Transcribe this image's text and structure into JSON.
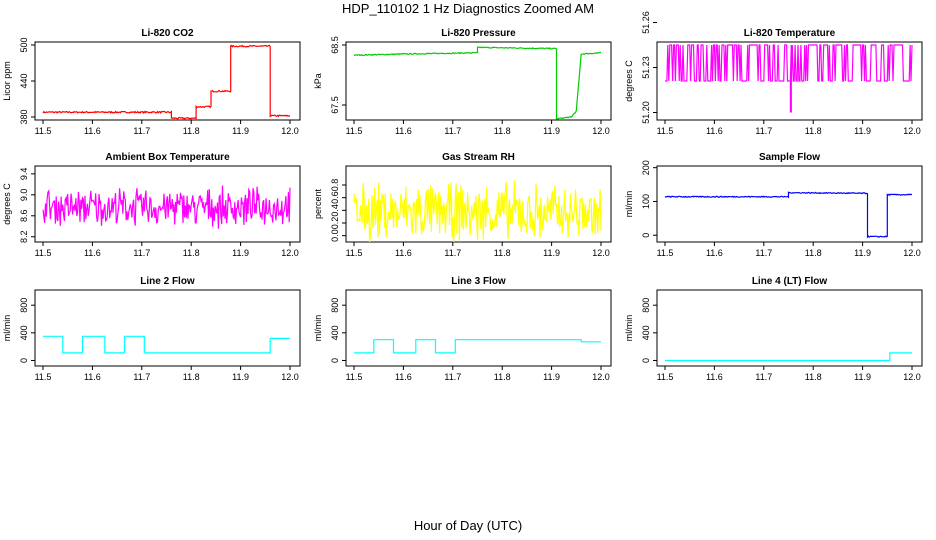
{
  "title": "HDP_110102  1 Hz Diagnostics Zoomed AM",
  "xlabel": "Hour of Day (UTC)",
  "chart_data": [
    {
      "type": "line",
      "title": "Li-820 CO2",
      "ylabel": "Licor ppm",
      "color": "#ff0000",
      "xlim": [
        11.5,
        12.0
      ],
      "ylim": [
        375,
        505
      ],
      "xticks": [
        "11.5",
        "11.6",
        "11.7",
        "11.8",
        "11.9",
        "12.0"
      ],
      "yticks": [
        "380",
        "440",
        "500"
      ],
      "series": [
        {
          "kind": "steps",
          "noise": 1.2,
          "points": [
            [
              11.5,
              388
            ],
            [
              11.76,
              388
            ],
            [
              11.76,
              378
            ],
            [
              11.81,
              378
            ],
            [
              11.81,
              397
            ],
            [
              11.84,
              397
            ],
            [
              11.84,
              423
            ],
            [
              11.88,
              423
            ],
            [
              11.88,
              498
            ],
            [
              11.96,
              498
            ],
            [
              11.96,
              382
            ],
            [
              12.0,
              382
            ]
          ]
        }
      ]
    },
    {
      "type": "line",
      "title": "Li-820 Pressure",
      "ylabel": "kPa",
      "color": "#00cc00",
      "xlim": [
        11.5,
        12.0
      ],
      "ylim": [
        67.25,
        68.55
      ],
      "xticks": [
        "11.5",
        "11.6",
        "11.7",
        "11.8",
        "11.9",
        "12.0"
      ],
      "yticks": [
        "67.5",
        "68.5"
      ],
      "series": [
        {
          "kind": "steps",
          "noise": 0.008,
          "points": [
            [
              11.5,
              68.33
            ],
            [
              11.6,
              68.35
            ],
            [
              11.75,
              68.37
            ],
            [
              11.75,
              68.46
            ],
            [
              11.91,
              68.44
            ],
            [
              11.91,
              67.27
            ],
            [
              11.94,
              67.3
            ],
            [
              11.95,
              67.4
            ],
            [
              11.96,
              68.35
            ],
            [
              12.0,
              68.37
            ]
          ]
        }
      ]
    },
    {
      "type": "line",
      "title": "Li-820 Temperature",
      "ylabel": "degrees C",
      "color": "#ff00ff",
      "xlim": [
        11.5,
        12.0
      ],
      "ylim": [
        51.195,
        51.247
      ],
      "xticks": [
        "11.5",
        "11.6",
        "11.7",
        "11.8",
        "11.9",
        "12.0"
      ],
      "yticks": [
        "51.20",
        "51.23",
        "51.26"
      ],
      "series": [
        {
          "kind": "toggle",
          "low": 51.221,
          "high": 51.245,
          "dip": [
            11.755,
            51.2
          ]
        }
      ]
    },
    {
      "type": "line",
      "title": "Ambient Box Temperature",
      "ylabel": "degrees C",
      "color": "#ff00ff",
      "xlim": [
        11.5,
        12.0
      ],
      "ylim": [
        8.1,
        9.55
      ],
      "xticks": [
        "11.5",
        "11.6",
        "11.7",
        "11.8",
        "11.9",
        "12.0"
      ],
      "yticks": [
        "8.2",
        "8.6",
        "9.0",
        "9.4"
      ],
      "series": [
        {
          "kind": "noise",
          "base": 8.76,
          "amp": 0.42
        }
      ]
    },
    {
      "type": "line",
      "title": "Gas Stream RH",
      "ylabel": "percent",
      "color": "#ffff00",
      "xlim": [
        11.5,
        12.0
      ],
      "ylim": [
        -0.1,
        1.1
      ],
      "xticks": [
        "11.5",
        "11.6",
        "11.7",
        "11.8",
        "11.9",
        "12.0"
      ],
      "yticks": [
        "0.0",
        "0.2",
        "0.4",
        "0.6",
        "0.8"
      ],
      "series": [
        {
          "kind": "noise",
          "base": 0.36,
          "amp": 0.55
        }
      ]
    },
    {
      "type": "line",
      "title": "Sample Flow",
      "ylabel": "ml/min",
      "color": "#0000ff",
      "xlim": [
        11.5,
        12.0
      ],
      "ylim": [
        -20,
        205
      ],
      "xticks": [
        "11.5",
        "11.6",
        "11.7",
        "11.8",
        "11.9",
        "12.0"
      ],
      "yticks": [
        "0",
        "100",
        "200"
      ],
      "series": [
        {
          "kind": "steps",
          "noise": 1.5,
          "points": [
            [
              11.5,
              114
            ],
            [
              11.75,
              114
            ],
            [
              11.75,
              126
            ],
            [
              11.91,
              124
            ],
            [
              11.91,
              -4
            ],
            [
              11.95,
              -4
            ],
            [
              11.95,
              120
            ],
            [
              12.0,
              120
            ]
          ]
        }
      ]
    },
    {
      "type": "line",
      "title": "Line 2 Flow",
      "ylabel": "ml/min",
      "color": "#00ffff",
      "xlim": [
        11.5,
        12.0
      ],
      "ylim": [
        -80,
        1020
      ],
      "xticks": [
        "11.5",
        "11.6",
        "11.7",
        "11.8",
        "11.9",
        "12.0"
      ],
      "yticks": [
        "0",
        "400",
        "800"
      ],
      "series": [
        {
          "kind": "steps",
          "noise": 0,
          "points": [
            [
              11.5,
              350
            ],
            [
              11.54,
              350
            ],
            [
              11.54,
              110
            ],
            [
              11.58,
              110
            ],
            [
              11.58,
              350
            ],
            [
              11.625,
              350
            ],
            [
              11.625,
              110
            ],
            [
              11.665,
              110
            ],
            [
              11.665,
              350
            ],
            [
              11.705,
              350
            ],
            [
              11.705,
              110
            ],
            [
              11.96,
              110
            ],
            [
              11.96,
              320
            ],
            [
              12.0,
              320
            ]
          ]
        }
      ]
    },
    {
      "type": "line",
      "title": "Line 3 Flow",
      "ylabel": "ml/min",
      "color": "#00ffff",
      "xlim": [
        11.5,
        12.0
      ],
      "ylim": [
        -80,
        1020
      ],
      "xticks": [
        "11.5",
        "11.6",
        "11.7",
        "11.8",
        "11.9",
        "12.0"
      ],
      "yticks": [
        "0",
        "400",
        "800"
      ],
      "series": [
        {
          "kind": "steps",
          "noise": 0,
          "points": [
            [
              11.5,
              110
            ],
            [
              11.54,
              110
            ],
            [
              11.54,
              300
            ],
            [
              11.58,
              300
            ],
            [
              11.58,
              110
            ],
            [
              11.625,
              110
            ],
            [
              11.625,
              300
            ],
            [
              11.665,
              300
            ],
            [
              11.665,
              110
            ],
            [
              11.705,
              110
            ],
            [
              11.705,
              300
            ],
            [
              11.96,
              300
            ],
            [
              11.96,
              270
            ],
            [
              12.0,
              270
            ]
          ]
        }
      ]
    },
    {
      "type": "line",
      "title": "Line 4 (LT) Flow",
      "ylabel": "ml/min",
      "color": "#00ffff",
      "xlim": [
        11.5,
        12.0
      ],
      "ylim": [
        -80,
        1020
      ],
      "xticks": [
        "11.5",
        "11.6",
        "11.7",
        "11.8",
        "11.9",
        "12.0"
      ],
      "yticks": [
        "0",
        "400",
        "800"
      ],
      "series": [
        {
          "kind": "steps",
          "noise": 0,
          "points": [
            [
              11.5,
              0
            ],
            [
              11.955,
              0
            ],
            [
              11.955,
              110
            ],
            [
              12.0,
              110
            ]
          ]
        }
      ]
    }
  ]
}
